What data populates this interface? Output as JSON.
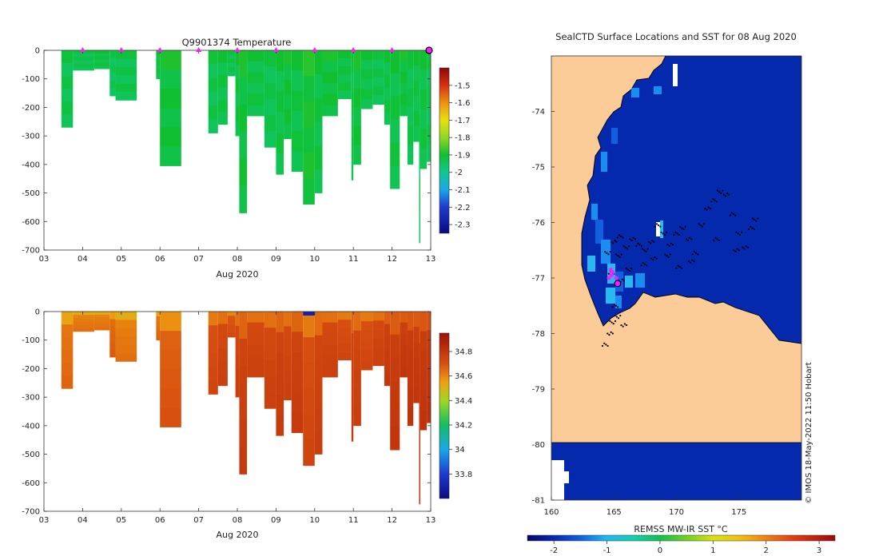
{
  "chart_data": [
    {
      "type": "heatmap",
      "title": "Q9901374  Temperature",
      "xlabel": "Aug 2020",
      "ylabel": "",
      "x_ticks": [
        "03",
        "04",
        "05",
        "06",
        "07",
        "08",
        "09",
        "10",
        "11",
        "12",
        "13"
      ],
      "y_ticks": [
        "0",
        "-100",
        "-200",
        "-300",
        "-400",
        "-500",
        "-600",
        "-700"
      ],
      "xlim": [
        3,
        13
      ],
      "ylim": [
        -700,
        0
      ],
      "colorbar": {
        "ticks": [
          "-1.5",
          "-1.6",
          "-1.7",
          "-1.8",
          "-1.9",
          "-2",
          "-2.1",
          "-2.2",
          "-2.3"
        ],
        "range": [
          -2.35,
          -1.4
        ]
      },
      "surface_markers_day": [
        4,
        5,
        6,
        7,
        8,
        9,
        10,
        11,
        12
      ],
      "profiles": [
        {
          "t0": 3.45,
          "t1": 3.75,
          "depth": 270,
          "value": -1.93
        },
        {
          "t0": 3.75,
          "t1": 4.3,
          "depth": 70,
          "value": -1.93
        },
        {
          "t0": 4.3,
          "t1": 4.7,
          "depth": 65,
          "value": -1.92
        },
        {
          "t0": 4.7,
          "t1": 4.85,
          "depth": 160,
          "value": -1.94
        },
        {
          "t0": 4.85,
          "t1": 5.4,
          "depth": 175,
          "value": -1.93
        },
        {
          "t0": 5.9,
          "t1": 6.0,
          "depth": 100,
          "value": -1.92
        },
        {
          "t0": 6.0,
          "t1": 6.55,
          "depth": 405,
          "value": -1.91
        },
        {
          "t0": 7.25,
          "t1": 7.5,
          "depth": 290,
          "value": -1.93
        },
        {
          "t0": 7.5,
          "t1": 7.75,
          "depth": 260,
          "value": -1.92
        },
        {
          "t0": 7.75,
          "t1": 7.95,
          "depth": 90,
          "value": -1.93
        },
        {
          "t0": 7.95,
          "t1": 8.05,
          "depth": 300,
          "value": -1.92
        },
        {
          "t0": 8.05,
          "t1": 8.25,
          "depth": 570,
          "value": -1.91
        },
        {
          "t0": 8.25,
          "t1": 8.7,
          "depth": 230,
          "value": -1.92
        },
        {
          "t0": 8.7,
          "t1": 9.0,
          "depth": 340,
          "value": -1.93
        },
        {
          "t0": 9.0,
          "t1": 9.2,
          "depth": 435,
          "value": -1.92
        },
        {
          "t0": 9.2,
          "t1": 9.4,
          "depth": 310,
          "value": -1.91
        },
        {
          "t0": 9.4,
          "t1": 9.7,
          "depth": 425,
          "value": -1.92
        },
        {
          "t0": 9.7,
          "t1": 10.0,
          "depth": 540,
          "value": -1.9
        },
        {
          "t0": 10.0,
          "t1": 10.2,
          "depth": 500,
          "value": -1.92
        },
        {
          "t0": 10.2,
          "t1": 10.6,
          "depth": 230,
          "value": -1.91
        },
        {
          "t0": 10.6,
          "t1": 10.95,
          "depth": 170,
          "value": -1.92
        },
        {
          "t0": 10.95,
          "t1": 11.0,
          "depth": 455,
          "value": -1.93
        },
        {
          "t0": 11.0,
          "t1": 11.2,
          "depth": 400,
          "value": -1.91
        },
        {
          "t0": 11.2,
          "t1": 11.5,
          "depth": 205,
          "value": -1.92
        },
        {
          "t0": 11.5,
          "t1": 11.8,
          "depth": 190,
          "value": -1.93
        },
        {
          "t0": 11.8,
          "t1": 11.95,
          "depth": 260,
          "value": -1.92
        },
        {
          "t0": 11.95,
          "t1": 12.2,
          "depth": 485,
          "value": -1.92
        },
        {
          "t0": 12.2,
          "t1": 12.4,
          "depth": 230,
          "value": -1.91
        },
        {
          "t0": 12.4,
          "t1": 12.55,
          "depth": 400,
          "value": -1.93
        },
        {
          "t0": 12.55,
          "t1": 12.7,
          "depth": 320,
          "value": -1.92
        },
        {
          "t0": 12.7,
          "t1": 12.73,
          "depth": 675,
          "value": -1.93
        },
        {
          "t0": 12.73,
          "t1": 12.9,
          "depth": 415,
          "value": -1.92
        },
        {
          "t0": 12.9,
          "t1": 13.05,
          "depth": 390,
          "value": -1.93
        }
      ],
      "colormap": [
        [
          -2.35,
          "#0a0a80"
        ],
        [
          -2.2,
          "#1e3ad0"
        ],
        [
          -2.1,
          "#18a8e8"
        ],
        [
          -2.0,
          "#10c890"
        ],
        [
          -1.9,
          "#10c030"
        ],
        [
          -1.8,
          "#90d820"
        ],
        [
          -1.7,
          "#e8e010"
        ],
        [
          -1.6,
          "#f09010"
        ],
        [
          -1.5,
          "#d83010"
        ],
        [
          -1.4,
          "#900808"
        ]
      ]
    },
    {
      "type": "heatmap",
      "title": "",
      "xlabel": "Aug 2020",
      "ylabel": "",
      "x_ticks": [
        "03",
        "04",
        "05",
        "06",
        "07",
        "08",
        "09",
        "10",
        "11",
        "12",
        "13"
      ],
      "y_ticks": [
        "0",
        "-100",
        "-200",
        "-300",
        "-400",
        "-500",
        "-600",
        "-700"
      ],
      "xlim": [
        3,
        13
      ],
      "ylim": [
        -700,
        0
      ],
      "colorbar": {
        "ticks": [
          "34.8",
          "34.6",
          "34.4",
          "34.2",
          "34",
          "33.8"
        ],
        "range": [
          33.6,
          34.95
        ]
      },
      "profiles": [
        {
          "t0": 3.45,
          "t1": 3.75,
          "depth": 270,
          "value": 34.62
        },
        {
          "t0": 3.75,
          "t1": 4.3,
          "depth": 70,
          "value": 34.6
        },
        {
          "t0": 4.3,
          "t1": 4.7,
          "depth": 65,
          "value": 34.6
        },
        {
          "t0": 4.7,
          "t1": 4.85,
          "depth": 160,
          "value": 34.64
        },
        {
          "t0": 4.85,
          "t1": 5.4,
          "depth": 175,
          "value": 34.6
        },
        {
          "t0": 5.9,
          "t1": 6.0,
          "depth": 100,
          "value": 34.62
        },
        {
          "t0": 6.0,
          "t1": 6.55,
          "depth": 405,
          "value": 34.66
        },
        {
          "t0": 7.25,
          "t1": 7.5,
          "depth": 290,
          "value": 34.7
        },
        {
          "t0": 7.5,
          "t1": 7.75,
          "depth": 260,
          "value": 34.72
        },
        {
          "t0": 7.75,
          "t1": 7.95,
          "depth": 90,
          "value": 34.68
        },
        {
          "t0": 7.95,
          "t1": 8.05,
          "depth": 300,
          "value": 34.72
        },
        {
          "t0": 8.05,
          "t1": 8.25,
          "depth": 570,
          "value": 34.74
        },
        {
          "t0": 8.25,
          "t1": 8.7,
          "depth": 230,
          "value": 34.72
        },
        {
          "t0": 8.7,
          "t1": 9.0,
          "depth": 340,
          "value": 34.72
        },
        {
          "t0": 9.0,
          "t1": 9.2,
          "depth": 435,
          "value": 34.74
        },
        {
          "t0": 9.2,
          "t1": 9.4,
          "depth": 310,
          "value": 34.72
        },
        {
          "t0": 9.4,
          "t1": 9.7,
          "depth": 425,
          "value": 34.74
        },
        {
          "t0": 9.7,
          "t1": 10.0,
          "depth": 540,
          "value": 34.7
        },
        {
          "t0": 10.0,
          "t1": 10.2,
          "depth": 500,
          "value": 34.73
        },
        {
          "t0": 10.2,
          "t1": 10.6,
          "depth": 230,
          "value": 34.72
        },
        {
          "t0": 10.6,
          "t1": 10.95,
          "depth": 170,
          "value": 34.7
        },
        {
          "t0": 10.95,
          "t1": 11.0,
          "depth": 455,
          "value": 34.74
        },
        {
          "t0": 11.0,
          "t1": 11.2,
          "depth": 400,
          "value": 34.73
        },
        {
          "t0": 11.2,
          "t1": 11.5,
          "depth": 205,
          "value": 34.7
        },
        {
          "t0": 11.5,
          "t1": 11.8,
          "depth": 190,
          "value": 34.72
        },
        {
          "t0": 11.8,
          "t1": 11.95,
          "depth": 260,
          "value": 34.75
        },
        {
          "t0": 11.95,
          "t1": 12.2,
          "depth": 485,
          "value": 34.76
        },
        {
          "t0": 12.2,
          "t1": 12.4,
          "depth": 230,
          "value": 34.76
        },
        {
          "t0": 12.4,
          "t1": 12.55,
          "depth": 400,
          "value": 34.77
        },
        {
          "t0": 12.55,
          "t1": 12.7,
          "depth": 320,
          "value": 34.76
        },
        {
          "t0": 12.7,
          "t1": 12.73,
          "depth": 675,
          "value": 34.78
        },
        {
          "t0": 12.73,
          "t1": 12.9,
          "depth": 415,
          "value": 34.77
        },
        {
          "t0": 12.9,
          "t1": 13.05,
          "depth": 390,
          "value": 34.78
        }
      ],
      "surface_anomaly": {
        "t0": 9.7,
        "t1": 10.0,
        "value": 33.7
      },
      "colormap": [
        [
          33.6,
          "#0a0a80"
        ],
        [
          33.8,
          "#1e3ad0"
        ],
        [
          34.0,
          "#18a8e8"
        ],
        [
          34.2,
          "#10c060"
        ],
        [
          34.4,
          "#a0d820"
        ],
        [
          34.55,
          "#f0a010"
        ],
        [
          34.7,
          "#d85010"
        ],
        [
          34.95,
          "#a01008"
        ]
      ]
    },
    {
      "type": "heatmap",
      "title": "SealCTD Surface Locations and SST for 08 Aug 2020",
      "xlabel": "",
      "ylabel": "",
      "x_ticks": [
        "160",
        "165",
        "170",
        "175"
      ],
      "y_ticks": [
        "-74",
        "-75",
        "-76",
        "-77",
        "-78",
        "-79",
        "-80",
        "-81"
      ],
      "xlim": [
        160,
        180
      ],
      "ylim": [
        -81,
        -73
      ],
      "colorbar": {
        "label": "REMSS MW-IR SST °C",
        "ticks": [
          "-2",
          "-1",
          "0",
          "1",
          "2",
          "3"
        ],
        "range": [
          -2.5,
          3.3
        ]
      },
      "ocean_color": "#0529ad",
      "land_color": "#fccc98",
      "credit": "© IMOS 18-May-2022 11:50 Hobart",
      "track_points_lon_lat": [
        [
          164.5,
          -76.55
        ],
        [
          165.0,
          -76.35
        ],
        [
          165.5,
          -76.25
        ],
        [
          166.0,
          -76.45
        ],
        [
          166.5,
          -76.3
        ],
        [
          167.0,
          -76.4
        ],
        [
          167.5,
          -76.5
        ],
        [
          168.0,
          -76.35
        ],
        [
          168.5,
          -76.05
        ],
        [
          169.0,
          -76.2
        ],
        [
          169.5,
          -76.4
        ],
        [
          170.0,
          -76.2
        ],
        [
          170.5,
          -76.1
        ],
        [
          171.0,
          -76.3
        ],
        [
          171.5,
          -76.55
        ],
        [
          172.0,
          -76.05
        ],
        [
          172.5,
          -75.75
        ],
        [
          173.0,
          -75.6
        ],
        [
          173.5,
          -75.45
        ],
        [
          174.0,
          -75.5
        ],
        [
          174.5,
          -75.85
        ],
        [
          175.0,
          -76.2
        ],
        [
          175.5,
          -76.45
        ],
        [
          176.0,
          -76.1
        ],
        [
          176.3,
          -75.95
        ],
        [
          171.2,
          -76.7
        ],
        [
          170.2,
          -76.8
        ],
        [
          169.3,
          -76.6
        ],
        [
          168.2,
          -76.65
        ],
        [
          167.4,
          -76.75
        ],
        [
          166.2,
          -76.85
        ],
        [
          165.6,
          -77.05
        ],
        [
          165.1,
          -77.5
        ],
        [
          164.9,
          -77.8
        ],
        [
          164.7,
          -78.0
        ],
        [
          164.3,
          -78.2
        ],
        [
          165.3,
          -77.7
        ],
        [
          165.8,
          -77.85
        ],
        [
          164.8,
          -76.9
        ],
        [
          165.4,
          -76.6
        ],
        [
          174.8,
          -76.5
        ],
        [
          173.2,
          -76.3
        ]
      ],
      "surface_markers_lon_lat": [
        [
          164.9,
          -76.9
        ],
        [
          164.6,
          -77.0
        ],
        [
          164.8,
          -76.95
        ],
        [
          165.2,
          -77.0
        ],
        [
          164.75,
          -76.85
        ]
      ],
      "current_position_lon_lat": [
        165.3,
        -77.1
      ],
      "colormap": [
        [
          -2.5,
          "#050570"
        ],
        [
          -2.0,
          "#0529ad"
        ],
        [
          -1.5,
          "#1060e0"
        ],
        [
          -1.0,
          "#20b8f0"
        ],
        [
          -0.5,
          "#10d0b0"
        ],
        [
          0,
          "#10c050"
        ],
        [
          0.5,
          "#70d020"
        ],
        [
          1.0,
          "#d8e010"
        ],
        [
          1.5,
          "#f0c010"
        ],
        [
          2.0,
          "#f08010"
        ],
        [
          2.5,
          "#e04010"
        ],
        [
          3.3,
          "#a00808"
        ]
      ]
    }
  ]
}
